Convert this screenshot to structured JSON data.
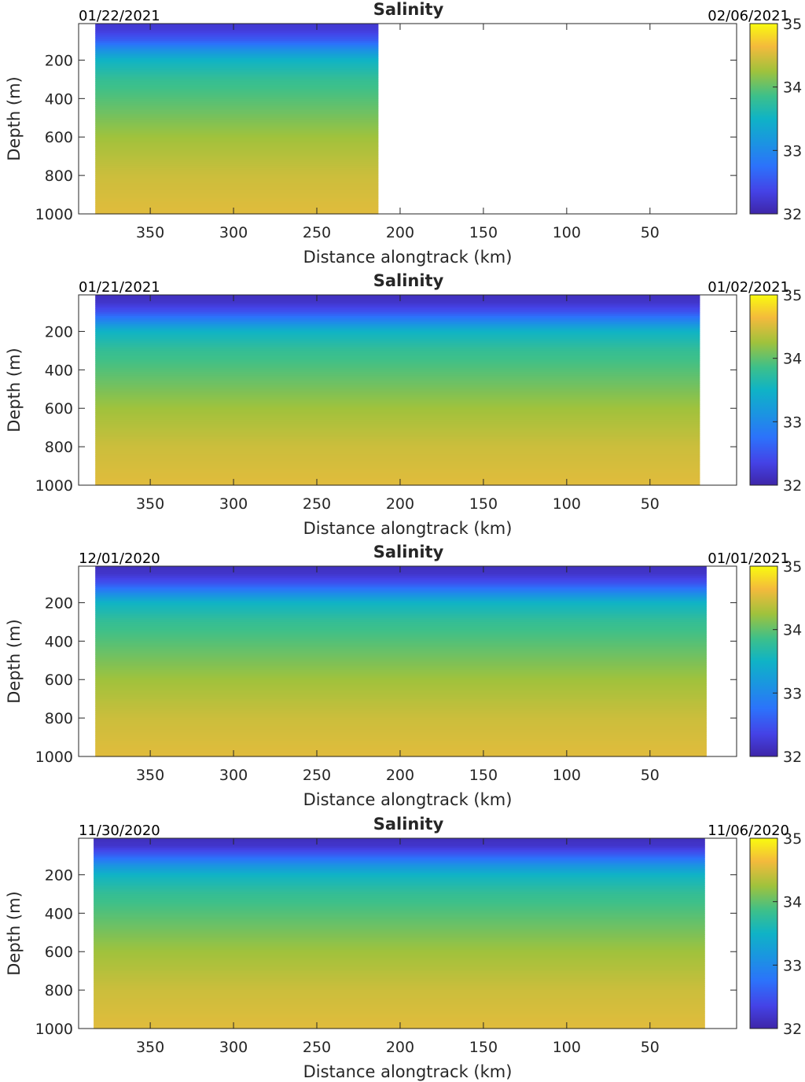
{
  "chart_data": [
    {
      "type": "heatmap",
      "title": "Salinity",
      "date_left": "01/22/2021",
      "date_right": "02/06/2021",
      "xlabel": "Distance alongtrack (km)",
      "ylabel": "Depth (m)",
      "xlim": [
        393,
        -2
      ],
      "ylim": [
        1000,
        10
      ],
      "x_reversed": true,
      "y_reversed": true,
      "xticks": [
        350,
        300,
        250,
        200,
        150,
        100,
        50
      ],
      "yticks": [
        200,
        400,
        600,
        800,
        1000
      ],
      "data_extent_km": [
        383,
        213
      ],
      "colorbar": {
        "min": 32,
        "max": 35,
        "ticks": [
          32,
          33,
          34,
          35
        ]
      },
      "profile": {
        "depth_m": [
          0,
          50,
          100,
          150,
          200,
          300,
          400,
          500,
          600,
          700,
          800,
          900,
          1000
        ],
        "salinity": [
          32.2,
          32.3,
          32.6,
          33.1,
          33.5,
          33.8,
          33.95,
          34.1,
          34.25,
          34.35,
          34.45,
          34.5,
          34.55
        ]
      }
    },
    {
      "type": "heatmap",
      "title": "Salinity",
      "date_left": "01/21/2021",
      "date_right": "01/02/2021",
      "xlabel": "Distance alongtrack (km)",
      "ylabel": "Depth (m)",
      "xlim": [
        393,
        -2
      ],
      "ylim": [
        1000,
        10
      ],
      "x_reversed": true,
      "y_reversed": true,
      "xticks": [
        350,
        300,
        250,
        200,
        150,
        100,
        50
      ],
      "yticks": [
        200,
        400,
        600,
        800,
        1000
      ],
      "data_extent_km": [
        383,
        20
      ],
      "colorbar": {
        "min": 32,
        "max": 35,
        "ticks": [
          32,
          33,
          34,
          35
        ]
      },
      "profile": {
        "depth_m": [
          0,
          50,
          100,
          150,
          200,
          300,
          400,
          500,
          600,
          700,
          800,
          900,
          1000
        ],
        "salinity": [
          32.1,
          32.2,
          32.5,
          33.0,
          33.5,
          33.8,
          33.95,
          34.1,
          34.25,
          34.35,
          34.45,
          34.5,
          34.55
        ]
      }
    },
    {
      "type": "heatmap",
      "title": "Salinity",
      "date_left": "12/01/2020",
      "date_right": "01/01/2021",
      "xlabel": "Distance alongtrack (km)",
      "ylabel": "Depth (m)",
      "xlim": [
        393,
        -2
      ],
      "ylim": [
        1000,
        10
      ],
      "x_reversed": true,
      "y_reversed": true,
      "xticks": [
        350,
        300,
        250,
        200,
        150,
        100,
        50
      ],
      "yticks": [
        200,
        400,
        600,
        800,
        1000
      ],
      "data_extent_km": [
        383,
        16
      ],
      "colorbar": {
        "min": 32,
        "max": 35,
        "ticks": [
          32,
          33,
          34,
          35
        ]
      },
      "profile": {
        "depth_m": [
          0,
          50,
          100,
          150,
          200,
          300,
          400,
          500,
          600,
          700,
          800,
          900,
          1000
        ],
        "salinity": [
          32.1,
          32.2,
          32.5,
          33.0,
          33.5,
          33.8,
          33.95,
          34.1,
          34.25,
          34.35,
          34.45,
          34.5,
          34.55
        ]
      }
    },
    {
      "type": "heatmap",
      "title": "Salinity",
      "date_left": "11/30/2020",
      "date_right": "11/06/2020",
      "xlabel": "Distance alongtrack (km)",
      "ylabel": "Depth (m)",
      "xlim": [
        393,
        -2
      ],
      "ylim": [
        1000,
        10
      ],
      "x_reversed": true,
      "y_reversed": true,
      "xticks": [
        350,
        300,
        250,
        200,
        150,
        100,
        50
      ],
      "yticks": [
        200,
        400,
        600,
        800,
        1000
      ],
      "data_extent_km": [
        384,
        17
      ],
      "colorbar": {
        "min": 32,
        "max": 35,
        "ticks": [
          32,
          33,
          34,
          35
        ]
      },
      "profile": {
        "depth_m": [
          0,
          50,
          100,
          150,
          200,
          300,
          400,
          500,
          600,
          700,
          800,
          900,
          1000
        ],
        "salinity": [
          32.1,
          32.2,
          32.6,
          33.1,
          33.5,
          33.8,
          33.95,
          34.1,
          34.25,
          34.35,
          34.45,
          34.5,
          34.55
        ]
      }
    }
  ]
}
